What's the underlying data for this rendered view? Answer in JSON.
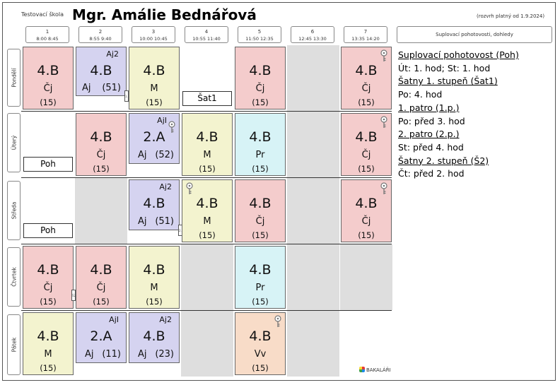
{
  "header": {
    "school": "Testovací škola",
    "teacher": "Mgr. Amálie Bednářová",
    "validity": "(rozvrh platný od 1.9.2024)"
  },
  "periods": [
    {
      "num": "1",
      "time": "8:00  8:45"
    },
    {
      "num": "2",
      "time": "8:55  9:40"
    },
    {
      "num": "3",
      "time": "10:00 10:45"
    },
    {
      "num": "4",
      "time": "10:55 11:40"
    },
    {
      "num": "5",
      "time": "11:50 12:35"
    },
    {
      "num": "6",
      "time": "12:45 13:30"
    },
    {
      "num": "7",
      "time": "13:35 14:20"
    }
  ],
  "panel_title": "Suplovací pohotovosti, dohledy",
  "days": [
    "Pondělí",
    "Úterý",
    "Středa",
    "Čtvrtek",
    "Pátek"
  ],
  "lessons": {
    "mon1": {
      "cls": "4.B",
      "subj": "Čj",
      "room": "(15)"
    },
    "mon2": {
      "cls": "4.B",
      "subj": "Aj",
      "room": "(51)",
      "grp": "Aj2"
    },
    "mon3": {
      "cls": "4.B",
      "subj": "M",
      "room": "(15)"
    },
    "mon5": {
      "cls": "4.B",
      "subj": "Čj",
      "room": "(15)"
    },
    "mon7": {
      "cls": "4.B",
      "subj": "Čj",
      "room": "(15)"
    },
    "tue2": {
      "cls": "4.B",
      "subj": "Čj",
      "room": "(15)"
    },
    "tue3": {
      "cls": "2.A",
      "subj": "Aj",
      "room": "(52)",
      "grp": "AjI"
    },
    "tue4": {
      "cls": "4.B",
      "subj": "M",
      "room": "(15)"
    },
    "tue5": {
      "cls": "4.B",
      "subj": "Pr",
      "room": "(15)"
    },
    "tue7": {
      "cls": "4.B",
      "subj": "Čj",
      "room": "(15)"
    },
    "wed3": {
      "cls": "4.B",
      "subj": "Aj",
      "room": "(51)",
      "grp": "Aj2"
    },
    "wed4": {
      "cls": "4.B",
      "subj": "M",
      "room": "(15)"
    },
    "wed5": {
      "cls": "4.B",
      "subj": "Čj",
      "room": "(15)"
    },
    "wed7": {
      "cls": "4.B",
      "subj": "Čj",
      "room": "(15)"
    },
    "thu1": {
      "cls": "4.B",
      "subj": "Čj",
      "room": "(15)"
    },
    "thu2": {
      "cls": "4.B",
      "subj": "Čj",
      "room": "(15)"
    },
    "thu3": {
      "cls": "4.B",
      "subj": "M",
      "room": "(15)"
    },
    "thu5": {
      "cls": "4.B",
      "subj": "Pr",
      "room": "(15)"
    },
    "fri1": {
      "cls": "4.B",
      "subj": "M",
      "room": "(15)"
    },
    "fri2": {
      "cls": "2.A",
      "subj": "Aj",
      "room": "(11)",
      "grp": "AjI"
    },
    "fri3": {
      "cls": "4.B",
      "subj": "Aj",
      "room": "(23)",
      "grp": "Aj2"
    },
    "fri5": {
      "cls": "4.B",
      "subj": "Vv",
      "room": "(15)"
    }
  },
  "duties": {
    "mon4": "Šat1",
    "tue1": "Poh",
    "wed1": "Poh"
  },
  "panel_lines": [
    {
      "text": "Suplovací pohotovost (Poh)",
      "heading": true
    },
    {
      "text": "Út: 1. hod; St: 1. hod",
      "heading": false
    },
    {
      "text": "Šatny 1. stupeň (Šat1)",
      "heading": true
    },
    {
      "text": "Po: 4. hod",
      "heading": false
    },
    {
      "text": "1. patro (1.p.)",
      "heading": true
    },
    {
      "text": "Po: před 3. hod",
      "heading": false
    },
    {
      "text": "2. patro (2.p.)",
      "heading": true
    },
    {
      "text": "St: před 4. hod",
      "heading": false
    },
    {
      "text": "Šatny 2. stupeň (Š2)",
      "heading": true
    },
    {
      "text": "Čt: před 2. hod",
      "heading": false
    }
  ],
  "tiny_marks": {
    "mon2": "1.p.",
    "wed3": "2.p.",
    "thu1": "Š2"
  },
  "logo": "BAKALÁŘI",
  "colors": {
    "pink": "#f4cccc",
    "lavender": "#d5d3f0",
    "yellow": "#f3f3cf",
    "cyan": "#d7f3f6",
    "peach": "#f8dcc8",
    "free": "#dedede"
  }
}
